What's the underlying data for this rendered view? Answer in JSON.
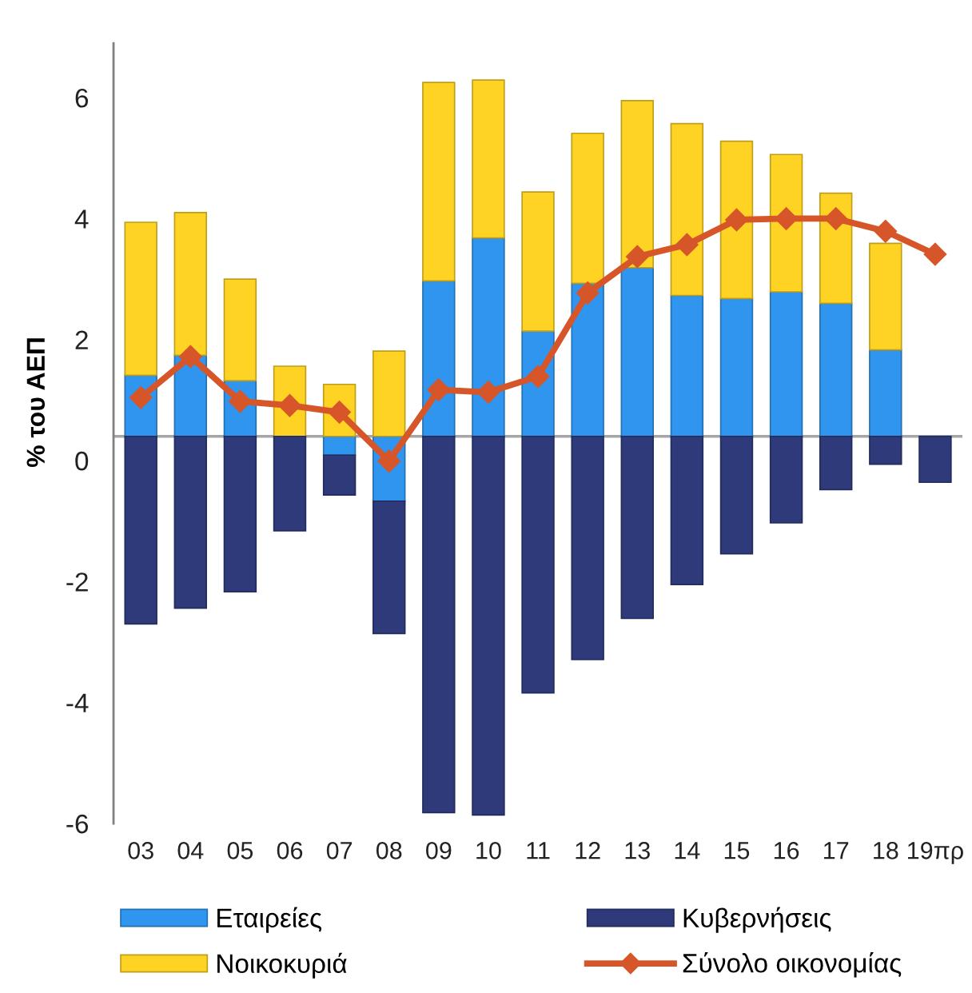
{
  "chart_data": {
    "type": "bar",
    "stacked": true,
    "ylabel": "% του ΑΕΠ",
    "categories": [
      "03",
      "04",
      "05",
      "06",
      "07",
      "08",
      "09",
      "10",
      "11",
      "12",
      "13",
      "14",
      "15",
      "16",
      "17",
      "18",
      "19πρ"
    ],
    "series": [
      {
        "name": "Εταιρείες",
        "color": "#2f95ee",
        "values": [
          1.01,
          1.34,
          0.92,
          null,
          -0.31,
          -1.07,
          2.57,
          3.28,
          1.74,
          2.53,
          2.79,
          2.33,
          2.28,
          2.39,
          2.2,
          1.43,
          null
        ]
      },
      {
        "name": "Νοικοκυριά",
        "color": "#ffd324",
        "values": [
          2.53,
          2.36,
          1.68,
          1.16,
          0.86,
          1.41,
          3.28,
          2.61,
          2.3,
          2.48,
          2.76,
          2.84,
          2.6,
          2.27,
          1.82,
          1.76,
          null
        ]
      },
      {
        "name": "Κυβερνήσεις",
        "color": "#2e3a7a",
        "values": [
          -3.1,
          -2.84,
          -2.57,
          -1.56,
          -0.66,
          -2.19,
          -6.22,
          -6.26,
          -4.24,
          -3.69,
          -3.01,
          -2.45,
          -1.94,
          -1.43,
          -0.88,
          -0.46,
          -0.76
        ]
      },
      {
        "name": "Σύνολο οικονομίας",
        "type": "line",
        "color": "#d6562a",
        "values": [
          0.64,
          1.32,
          0.58,
          0.51,
          0.4,
          -0.41,
          0.77,
          0.73,
          0.99,
          2.37,
          2.97,
          3.17,
          3.58,
          3.6,
          3.6,
          3.39,
          3.01
        ]
      }
    ],
    "ylim": [
      -6.4,
      6.5
    ],
    "yticks": [
      {
        "value": -6.4,
        "label": "-6"
      },
      {
        "value": -4.4,
        "label": "-4"
      },
      {
        "value": -2.4,
        "label": "-2"
      },
      {
        "value": -0.4,
        "label": "0"
      },
      {
        "value": 1.6,
        "label": "2"
      },
      {
        "value": 3.6,
        "label": "4"
      },
      {
        "value": 5.6,
        "label": "6"
      }
    ],
    "ref_lines": [
      {
        "axis": "y",
        "value": 0,
        "color": "#a6a6a6"
      }
    ],
    "marker": "diamond",
    "line_style": "solid",
    "grid": false,
    "legend": "bottom"
  }
}
